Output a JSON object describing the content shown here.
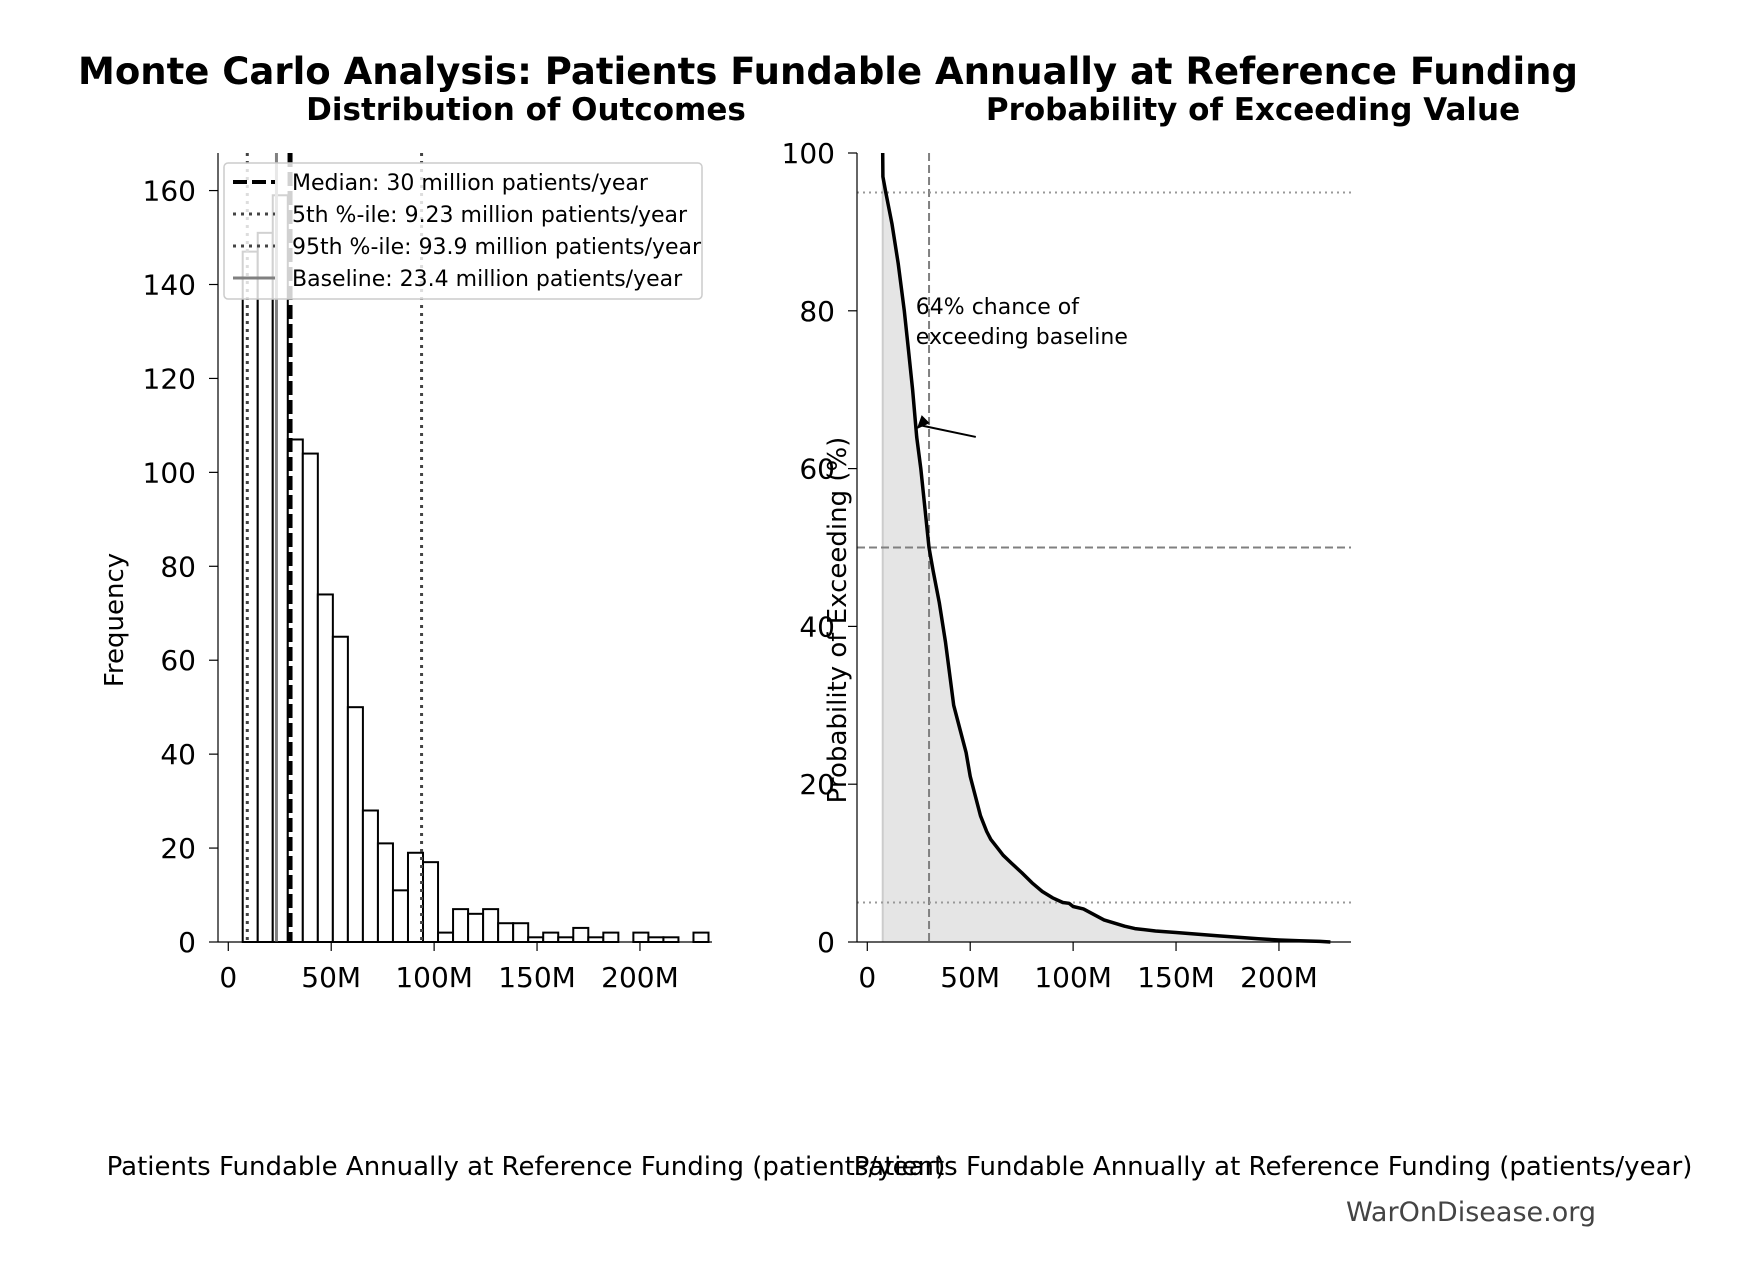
{
  "figure": {
    "suptitle": "Monte Carlo Analysis: Patients Fundable Annually at Reference Funding",
    "watermark": "WarOnDisease.org"
  },
  "chart_data": [
    {
      "type": "bar",
      "subtype": "histogram",
      "title": "Distribution of Outcomes",
      "xlabel": "Patients Fundable Annually at Reference Funding (patients/year)",
      "ylabel": "Frequency",
      "xlim": [
        -5000000,
        235000000
      ],
      "ylim": [
        0,
        168
      ],
      "xticks": [
        0,
        50000000,
        100000000,
        150000000,
        200000000
      ],
      "xtick_labels": [
        "0",
        "50M",
        "100M",
        "150M",
        "200M"
      ],
      "yticks": [
        0,
        20,
        40,
        60,
        80,
        100,
        120,
        140,
        160
      ],
      "ytick_labels": [
        "0",
        "20",
        "40",
        "60",
        "80",
        "100",
        "120",
        "140",
        "160"
      ],
      "bin_width": 7300000,
      "bins": [
        {
          "start": 7000000,
          "count": 147
        },
        {
          "start": 14300000,
          "count": 151
        },
        {
          "start": 21600000,
          "count": 159
        },
        {
          "start": 28900000,
          "count": 107
        },
        {
          "start": 36200000,
          "count": 104
        },
        {
          "start": 43500000,
          "count": 74
        },
        {
          "start": 50800000,
          "count": 65
        },
        {
          "start": 58100000,
          "count": 50
        },
        {
          "start": 65400000,
          "count": 28
        },
        {
          "start": 72700000,
          "count": 21
        },
        {
          "start": 80000000,
          "count": 11
        },
        {
          "start": 87300000,
          "count": 19
        },
        {
          "start": 94600000,
          "count": 17
        },
        {
          "start": 101900000,
          "count": 2
        },
        {
          "start": 109200000,
          "count": 7
        },
        {
          "start": 116500000,
          "count": 6
        },
        {
          "start": 123800000,
          "count": 7
        },
        {
          "start": 131100000,
          "count": 4
        },
        {
          "start": 138400000,
          "count": 4
        },
        {
          "start": 145700000,
          "count": 1
        },
        {
          "start": 153000000,
          "count": 2
        },
        {
          "start": 160300000,
          "count": 1
        },
        {
          "start": 167600000,
          "count": 3
        },
        {
          "start": 174900000,
          "count": 1
        },
        {
          "start": 182200000,
          "count": 2
        },
        {
          "start": 189500000,
          "count": 0
        },
        {
          "start": 196800000,
          "count": 2
        },
        {
          "start": 204100000,
          "count": 1
        },
        {
          "start": 211400000,
          "count": 1
        },
        {
          "start": 218700000,
          "count": 0
        },
        {
          "start": 226000000,
          "count": 2
        }
      ],
      "reference_lines": [
        {
          "label": "Median: 30 million patients/year",
          "value": 30000000,
          "style": "dashed",
          "color": "#000000"
        },
        {
          "label": "5th %-ile: 9.23 million patients/year",
          "value": 9230000,
          "style": "dotted",
          "color": "#444444"
        },
        {
          "label": "95th %-ile: 93.9 million patients/year",
          "value": 93900000,
          "style": "dotted",
          "color": "#444444"
        },
        {
          "label": "Baseline: 23.4 million patients/year",
          "value": 23400000,
          "style": "solid",
          "color": "#808080"
        }
      ],
      "legend_position": "top-left",
      "grid": false
    },
    {
      "type": "area",
      "subtype": "exceedance curve",
      "title": "Probability of Exceeding Value",
      "xlabel": "Patients Fundable Annually at Reference Funding (patients/year)",
      "ylabel": "Probability of Exceeding (%)",
      "xlim": [
        -5000000,
        235000000
      ],
      "ylim": [
        0,
        100
      ],
      "xticks": [
        0,
        50000000,
        100000000,
        150000000,
        200000000
      ],
      "xtick_labels": [
        "0",
        "50M",
        "100M",
        "150M",
        "200M"
      ],
      "yticks": [
        0,
        20,
        40,
        60,
        80,
        100
      ],
      "ytick_labels": [
        "0",
        "20",
        "40",
        "60",
        "80",
        "100"
      ],
      "x": [
        7500000,
        7600000,
        9000000,
        12000000,
        15000000,
        18000000,
        20000000,
        22000000,
        24000000,
        26000000,
        28000000,
        30000000,
        32000000,
        35000000,
        38000000,
        40000000,
        42000000,
        45000000,
        48000000,
        50000000,
        52000000,
        55000000,
        58000000,
        60000000,
        63000000,
        66000000,
        70000000,
        75000000,
        80000000,
        85000000,
        90000000,
        95000000,
        98000000,
        100000000,
        105000000,
        110000000,
        115000000,
        120000000,
        125000000,
        130000000,
        140000000,
        150000000,
        160000000,
        170000000,
        180000000,
        190000000,
        200000000,
        210000000,
        220000000,
        225000000
      ],
      "y": [
        100,
        97,
        95,
        91,
        86,
        80,
        75,
        70,
        64,
        60,
        55,
        50,
        47,
        43,
        38,
        34,
        30,
        27,
        24,
        21,
        19,
        16,
        14,
        13,
        12,
        11,
        10,
        8.8,
        7.5,
        6.4,
        5.6,
        5.0,
        4.9,
        4.5,
        4.2,
        3.5,
        2.8,
        2.4,
        2.0,
        1.7,
        1.4,
        1.2,
        1.0,
        0.8,
        0.6,
        0.4,
        0.25,
        0.15,
        0.07,
        0.0
      ],
      "fill_color": "#e5e5e5",
      "reference_lines": [
        {
          "orientation": "vertical",
          "value": 30000000,
          "style": "dashed",
          "color": "#808080"
        },
        {
          "orientation": "horizontal",
          "value": 50,
          "style": "dashed",
          "color": "#808080"
        },
        {
          "orientation": "horizontal",
          "value": 95,
          "style": "dotted",
          "color": "#999999"
        },
        {
          "orientation": "horizontal",
          "value": 5,
          "style": "dotted",
          "color": "#999999"
        }
      ],
      "annotation": {
        "lines": [
          "64% chance of",
          "exceeding baseline"
        ],
        "point": [
          24000000,
          65
        ],
        "text_at": [
          26000000,
          72
        ]
      },
      "grid": false
    }
  ]
}
